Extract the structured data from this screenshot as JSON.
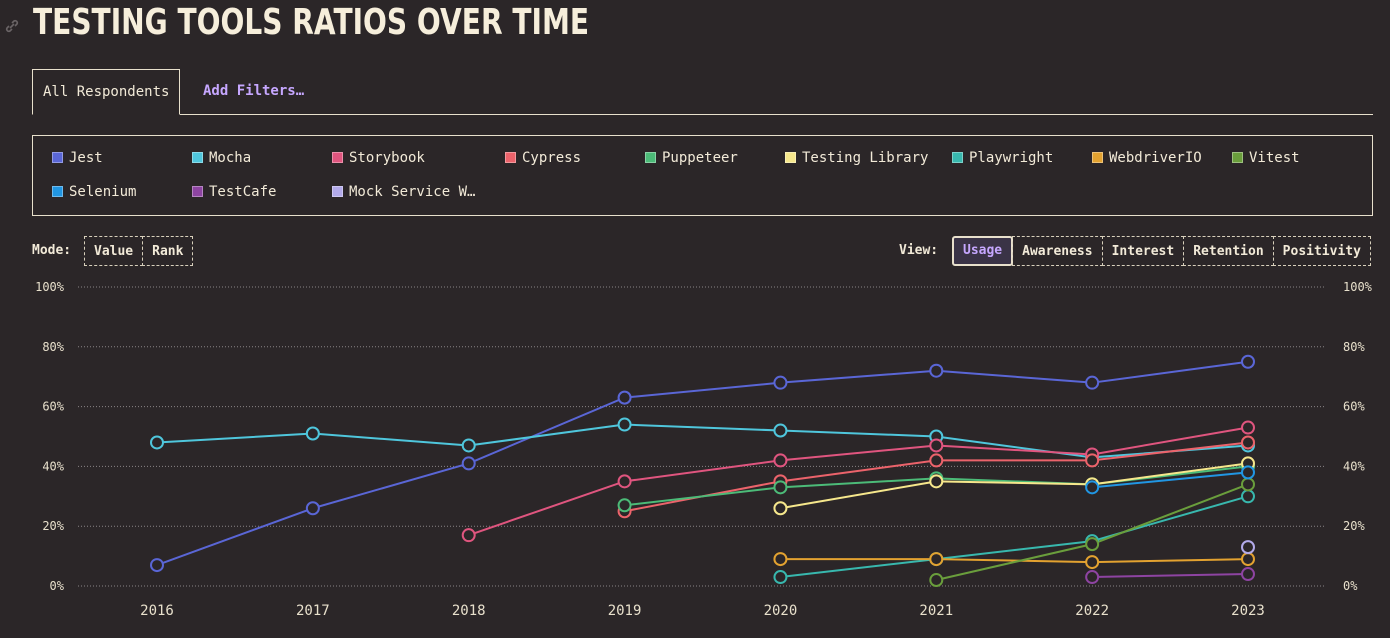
{
  "header": {
    "title": "TESTING TOOLS RATIOS OVER TIME"
  },
  "tabs": [
    "All Respondents",
    "Add Filters…"
  ],
  "controls": {
    "mode_label": "Mode:",
    "modes": [
      "Value",
      "Rank"
    ],
    "view_label": "View:",
    "views": [
      "Usage",
      "Awareness",
      "Interest",
      "Retention",
      "Positivity"
    ]
  },
  "chart_data": {
    "type": "line",
    "categories": [
      "2016",
      "2017",
      "2018",
      "2019",
      "2020",
      "2021",
      "2022",
      "2023"
    ],
    "ylim": [
      0,
      100
    ],
    "yticks": [
      {
        "value": 0,
        "label": "0%"
      },
      {
        "value": 20,
        "label": "20%"
      },
      {
        "value": 40,
        "label": "40%"
      },
      {
        "value": 60,
        "label": "60%"
      },
      {
        "value": 80,
        "label": "80%"
      },
      {
        "value": 100,
        "label": "100%"
      }
    ],
    "grid": true,
    "series": [
      {
        "name": "Jest",
        "color": "#5a66d6",
        "values": [
          7,
          26,
          41,
          63,
          68,
          72,
          68,
          75
        ]
      },
      {
        "name": "Mocha",
        "color": "#4fc6dc",
        "values": [
          48,
          51,
          47,
          54,
          52,
          50,
          43,
          47
        ]
      },
      {
        "name": "Storybook",
        "color": "#e0557f",
        "values": [
          null,
          null,
          17,
          35,
          42,
          47,
          44,
          53
        ]
      },
      {
        "name": "Cypress",
        "color": "#ec636b",
        "values": [
          null,
          null,
          null,
          25,
          35,
          42,
          42,
          48
        ]
      },
      {
        "name": "Puppeteer",
        "color": "#4cbb78",
        "values": [
          null,
          null,
          null,
          27,
          33,
          36,
          34,
          40
        ]
      },
      {
        "name": "Testing Library",
        "color": "#f6e78c",
        "values": [
          null,
          null,
          null,
          null,
          26,
          35,
          34,
          41
        ]
      },
      {
        "name": "Playwright",
        "color": "#38b8ae",
        "values": [
          null,
          null,
          null,
          null,
          3,
          9,
          15,
          30
        ]
      },
      {
        "name": "WebdriverIO",
        "color": "#e3a230",
        "values": [
          null,
          null,
          null,
          null,
          9,
          9,
          8,
          9
        ]
      },
      {
        "name": "Vitest",
        "color": "#6a9e3c",
        "values": [
          null,
          null,
          null,
          null,
          null,
          2,
          14,
          34
        ]
      },
      {
        "name": "Selenium",
        "color": "#2196e3",
        "values": [
          null,
          null,
          null,
          null,
          null,
          null,
          33,
          38
        ]
      },
      {
        "name": "TestCafe",
        "color": "#8e44a2",
        "values": [
          null,
          null,
          null,
          null,
          null,
          null,
          3,
          4
        ]
      },
      {
        "name": "Mock Service W…",
        "color": "#b3aaea",
        "values": [
          null,
          null,
          null,
          null,
          null,
          null,
          null,
          13
        ]
      }
    ]
  }
}
